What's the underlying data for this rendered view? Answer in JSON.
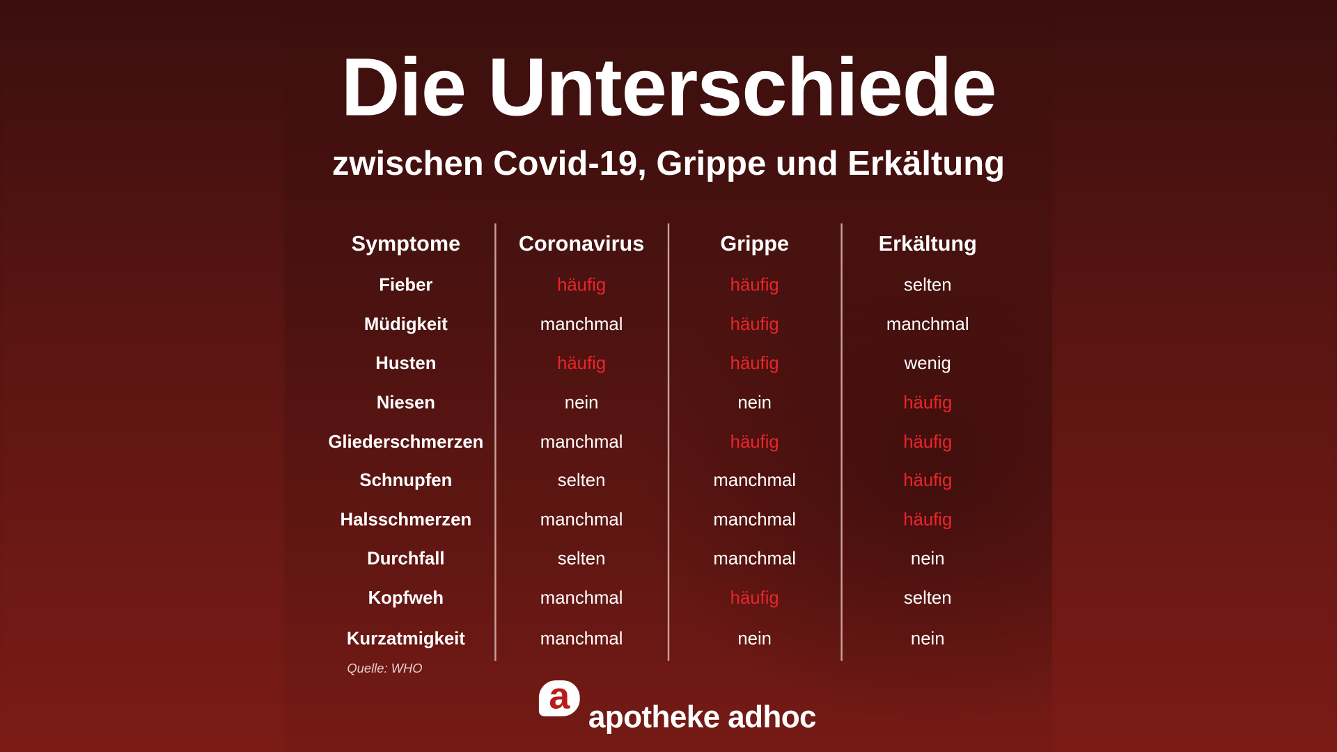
{
  "title": "Die Unterschiede",
  "subtitle": "zwischen Covid-19, Grippe und Erkältung",
  "columns": [
    "Symptome",
    "Coronavirus",
    "Grippe",
    "Erkältung"
  ],
  "rows": [
    {
      "symptom": "Fieber",
      "values": [
        "häufig",
        "häufig",
        "selten"
      ]
    },
    {
      "symptom": "Müdigkeit",
      "values": [
        "manchmal",
        "häufig",
        "manchmal"
      ]
    },
    {
      "symptom": "Husten",
      "values": [
        "häufig",
        "häufig",
        "wenig"
      ]
    },
    {
      "symptom": "Niesen",
      "values": [
        "nein",
        "nein",
        "häufig"
      ]
    },
    {
      "symptom": "Gliederschmerzen",
      "values": [
        "manchmal",
        "häufig",
        "häufig"
      ]
    },
    {
      "symptom": "Schnupfen",
      "values": [
        "selten",
        "manchmal",
        "häufig"
      ]
    },
    {
      "symptom": "Halsschmerzen",
      "values": [
        "manchmal",
        "manchmal",
        "häufig"
      ]
    },
    {
      "symptom": "Durchfall",
      "values": [
        "selten",
        "manchmal",
        "nein"
      ]
    },
    {
      "symptom": "Kopfweh",
      "values": [
        "manchmal",
        "häufig",
        "selten"
      ]
    },
    {
      "symptom": "Kurzatmigkeit",
      "values": [
        "manchmal",
        "nein",
        "nein"
      ]
    }
  ],
  "highlight_value": "häufig",
  "colors": {
    "highlight": "#e8262a",
    "background": "#4a1311",
    "text": "#ffffff"
  },
  "source": "Quelle: WHO",
  "logo": {
    "mark": "a",
    "text": "apotheke adhoc"
  }
}
